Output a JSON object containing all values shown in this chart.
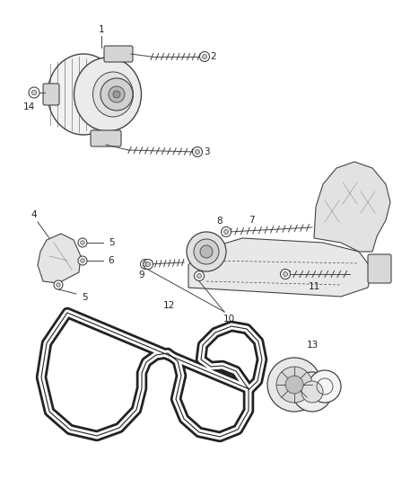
{
  "bg_color": "#ffffff",
  "line_color": "#444444",
  "fig_width": 4.38,
  "fig_height": 5.33,
  "dpi": 100
}
